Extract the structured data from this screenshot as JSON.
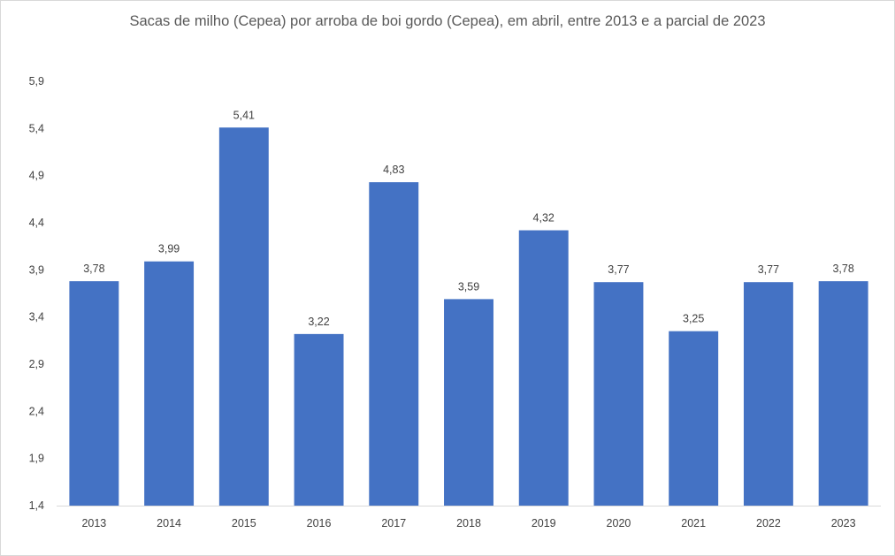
{
  "chart_data": {
    "type": "bar",
    "title": "Sacas de milho (Cepea) por arroba de boi gordo (Cepea), em abril, entre 2013 e a parcial de 2023",
    "categories": [
      "2013",
      "2014",
      "2015",
      "2016",
      "2017",
      "2018",
      "2019",
      "2020",
      "2021",
      "2022",
      "2023"
    ],
    "values": [
      3.78,
      3.99,
      5.41,
      3.22,
      4.83,
      3.59,
      4.32,
      3.77,
      3.25,
      3.77,
      3.78
    ],
    "value_labels": [
      "3,78",
      "3,99",
      "5,41",
      "3,22",
      "4,83",
      "3,59",
      "4,32",
      "3,77",
      "3,25",
      "3,77",
      "3,78"
    ],
    "yticks": [
      1.4,
      1.9,
      2.4,
      2.9,
      3.4,
      3.9,
      4.4,
      4.9,
      5.4,
      5.9
    ],
    "ytick_labels": [
      "1,4",
      "1,9",
      "2,4",
      "2,9",
      "3,4",
      "3,9",
      "4,4",
      "4,9",
      "5,4",
      "5,9"
    ],
    "ylim": [
      1.4,
      5.9
    ],
    "xlabel": "",
    "ylabel": "",
    "grid": false,
    "legend": "none",
    "bar_color": "#4472C4",
    "axis_color": "#d9d9d9"
  }
}
